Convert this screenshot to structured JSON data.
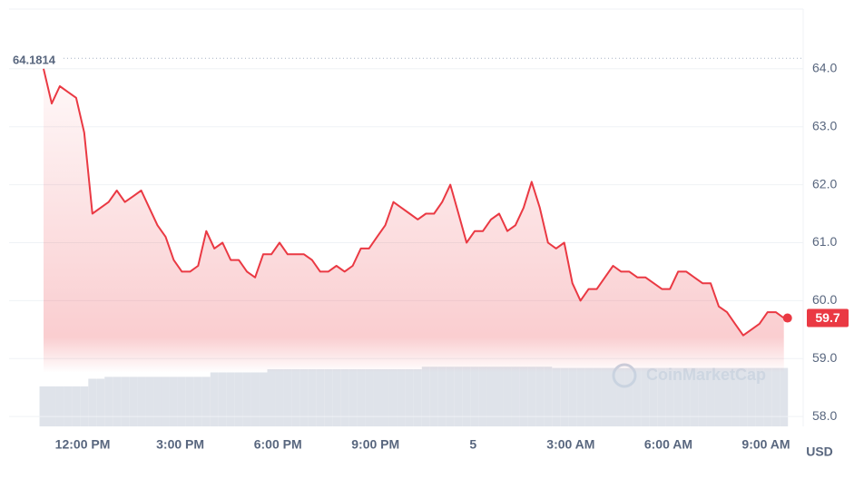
{
  "chart_data": {
    "type": "line",
    "series": [
      {
        "name": "Price",
        "color": "#ea3943",
        "values": [
          64.0,
          63.4,
          63.7,
          63.6,
          63.5,
          62.9,
          61.5,
          61.6,
          61.7,
          61.9,
          61.7,
          61.8,
          61.9,
          61.6,
          61.3,
          61.1,
          60.7,
          60.5,
          60.5,
          60.6,
          61.2,
          60.9,
          61.0,
          60.7,
          60.7,
          60.5,
          60.4,
          60.8,
          60.8,
          61.0,
          60.8,
          60.8,
          60.8,
          60.7,
          60.5,
          60.5,
          60.6,
          60.5,
          60.6,
          60.9,
          60.9,
          61.1,
          61.3,
          61.7,
          61.6,
          61.5,
          61.4,
          61.5,
          61.5,
          61.7,
          62.0,
          61.5,
          61.0,
          61.2,
          61.2,
          61.4,
          61.5,
          61.2,
          61.3,
          61.6,
          62.05,
          61.6,
          61.0,
          60.9,
          61.0,
          60.3,
          60.0,
          60.2,
          60.2,
          60.4,
          60.6,
          60.5,
          60.5,
          60.4,
          60.4,
          60.3,
          60.2,
          60.2,
          60.5,
          60.5,
          60.4,
          60.3,
          60.3,
          59.9,
          59.8,
          59.6,
          59.4,
          59.5,
          59.6,
          59.8,
          59.8,
          59.7
        ]
      }
    ],
    "volume": {
      "color": "#dfe3ea",
      "lim": [
        0,
        100
      ],
      "values": [
        63,
        63,
        63,
        63,
        63,
        63,
        75,
        75,
        78,
        78,
        78,
        78,
        78,
        78,
        78,
        78,
        78,
        78,
        78,
        78,
        78,
        85,
        85,
        85,
        85,
        85,
        85,
        85,
        90,
        90,
        90,
        90,
        90,
        90,
        90,
        90,
        90,
        90,
        90,
        90,
        90,
        90,
        90,
        90,
        90,
        90,
        90,
        94,
        94,
        94,
        94,
        94,
        94,
        94,
        94,
        94,
        94,
        94,
        94,
        94,
        94,
        94,
        94,
        92,
        92,
        92,
        92,
        92,
        92,
        92,
        92,
        92,
        92,
        92,
        92,
        92,
        92,
        92,
        92,
        92,
        92,
        92,
        92,
        92,
        92,
        92,
        92,
        92,
        92,
        92,
        92,
        92
      ]
    },
    "xlim": [
      -4.24,
      91.7
    ],
    "xticks": [
      {
        "value": 4.8,
        "label": "12:00 PM"
      },
      {
        "value": 16.8,
        "label": "3:00 PM"
      },
      {
        "value": 28.8,
        "label": "6:00 PM"
      },
      {
        "value": 40.8,
        "label": "9:00 PM"
      },
      {
        "value": 52.8,
        "label": "5"
      },
      {
        "value": 64.8,
        "label": "3:00 AM"
      },
      {
        "value": 76.8,
        "label": "6:00 AM"
      },
      {
        "value": 88.8,
        "label": "9:00 AM"
      }
    ],
    "ylim": [
      57.83,
      65.03
    ],
    "yticks": [
      {
        "value": 58,
        "label": "58.0"
      },
      {
        "value": 59,
        "label": "59.0"
      },
      {
        "value": 60,
        "label": "60.0"
      },
      {
        "value": 61,
        "label": "61.0"
      },
      {
        "value": 62,
        "label": "62.0"
      },
      {
        "value": 63,
        "label": "63.0"
      },
      {
        "value": 64,
        "label": "64.0"
      }
    ],
    "grid": true,
    "reference_line": 64.1814,
    "price_tag": 59.7,
    "currency": "USD",
    "watermark": "CoinMarketCap"
  }
}
